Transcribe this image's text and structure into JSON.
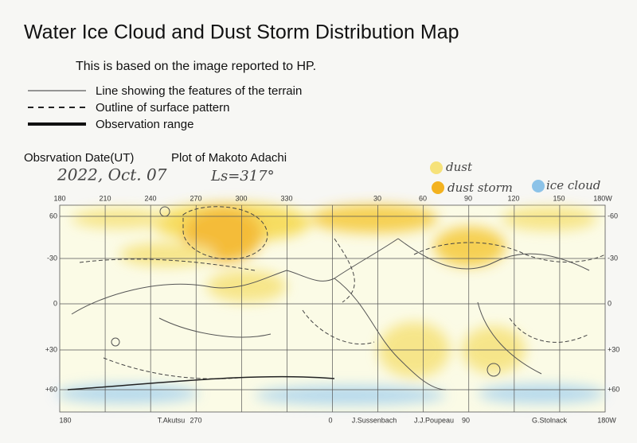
{
  "header": {
    "title": "Water Ice Cloud and Dust Storm Distribution Map",
    "subtitle": "This is based on the image reported to HP."
  },
  "legend": {
    "items": [
      "Line showing the features of the terrain",
      "Outline of surface pattern",
      "Observation range"
    ]
  },
  "observation": {
    "label": "Obsrvation Date(UT)",
    "date": "2022, Oct. 07"
  },
  "plot": {
    "label": "Plot of Makoto Adachi",
    "ls": "Ls=317°"
  },
  "key": {
    "items": [
      "dust",
      "dust storm",
      "ice cloud"
    ]
  },
  "map": {
    "top_labels": [
      "180",
      "210",
      "240",
      "270",
      "300",
      "330",
      "30",
      "60",
      "90",
      "120",
      "150",
      "180W"
    ],
    "left_labels": [
      "60",
      "-30",
      "0",
      "+30",
      "+60"
    ],
    "right_labels": [
      "-60",
      "-30",
      "0",
      "+30",
      "+60"
    ],
    "bottom_labels": [
      "180",
      "T.Akutsu",
      "270",
      "0",
      "J.Sussenbach",
      "J.J.Poupeau",
      "90",
      "G.Stolnack",
      "180W"
    ]
  }
}
